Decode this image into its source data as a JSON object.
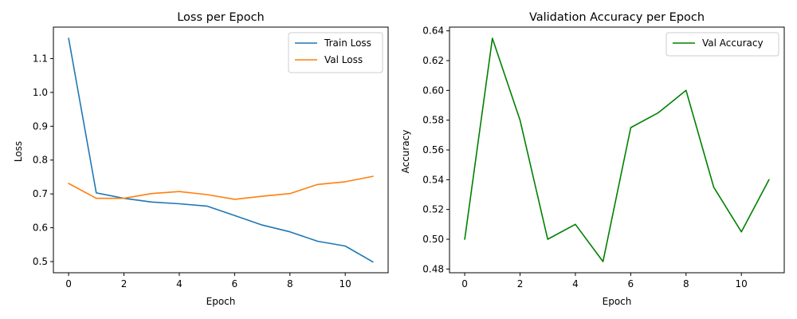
{
  "chart_data": [
    {
      "type": "line",
      "title": "Loss per Epoch",
      "xlabel": "Epoch",
      "ylabel": "Loss",
      "xlim": [
        -0.55,
        11.55
      ],
      "ylim": [
        0.467,
        1.193
      ],
      "x_ticks": [
        0,
        2,
        4,
        6,
        8,
        10
      ],
      "y_ticks": [
        0.5,
        0.6,
        0.7,
        0.8,
        0.9,
        1.0,
        1.1
      ],
      "y_tick_labels": [
        "0.5",
        "0.6",
        "0.7",
        "0.8",
        "0.9",
        "1.0",
        "1.1"
      ],
      "grid": false,
      "legend_position": "top-right",
      "x": [
        0,
        1,
        2,
        3,
        4,
        5,
        6,
        7,
        8,
        9,
        10,
        11
      ],
      "series": [
        {
          "name": "Train Loss",
          "color": "#1f77b4",
          "values": [
            1.16,
            0.703,
            0.687,
            0.676,
            0.671,
            0.664,
            0.636,
            0.608,
            0.588,
            0.56,
            0.546,
            0.499
          ]
        },
        {
          "name": "Val Loss",
          "color": "#ff7f0e",
          "values": [
            0.731,
            0.687,
            0.687,
            0.701,
            0.707,
            0.698,
            0.684,
            0.693,
            0.701,
            0.728,
            0.736,
            0.752
          ]
        }
      ]
    },
    {
      "type": "line",
      "title": "Validation Accuracy per Epoch",
      "xlabel": "Epoch",
      "ylabel": "Accuracy",
      "xlim": [
        -0.55,
        11.55
      ],
      "ylim": [
        0.4775,
        0.6425
      ],
      "x_ticks": [
        0,
        2,
        4,
        6,
        8,
        10
      ],
      "y_ticks": [
        0.48,
        0.5,
        0.52,
        0.54,
        0.56,
        0.58,
        0.6,
        0.62,
        0.64
      ],
      "y_tick_labels": [
        "0.48",
        "0.50",
        "0.52",
        "0.54",
        "0.56",
        "0.58",
        "0.60",
        "0.62",
        "0.64"
      ],
      "grid": false,
      "legend_position": "top-right",
      "x": [
        0,
        1,
        2,
        3,
        4,
        5,
        6,
        7,
        8,
        9,
        10,
        11
      ],
      "series": [
        {
          "name": "Val Accuracy",
          "color": "#008000",
          "values": [
            0.5,
            0.635,
            0.58,
            0.5,
            0.51,
            0.485,
            0.575,
            0.585,
            0.6,
            0.535,
            0.505,
            0.54
          ]
        }
      ]
    }
  ]
}
